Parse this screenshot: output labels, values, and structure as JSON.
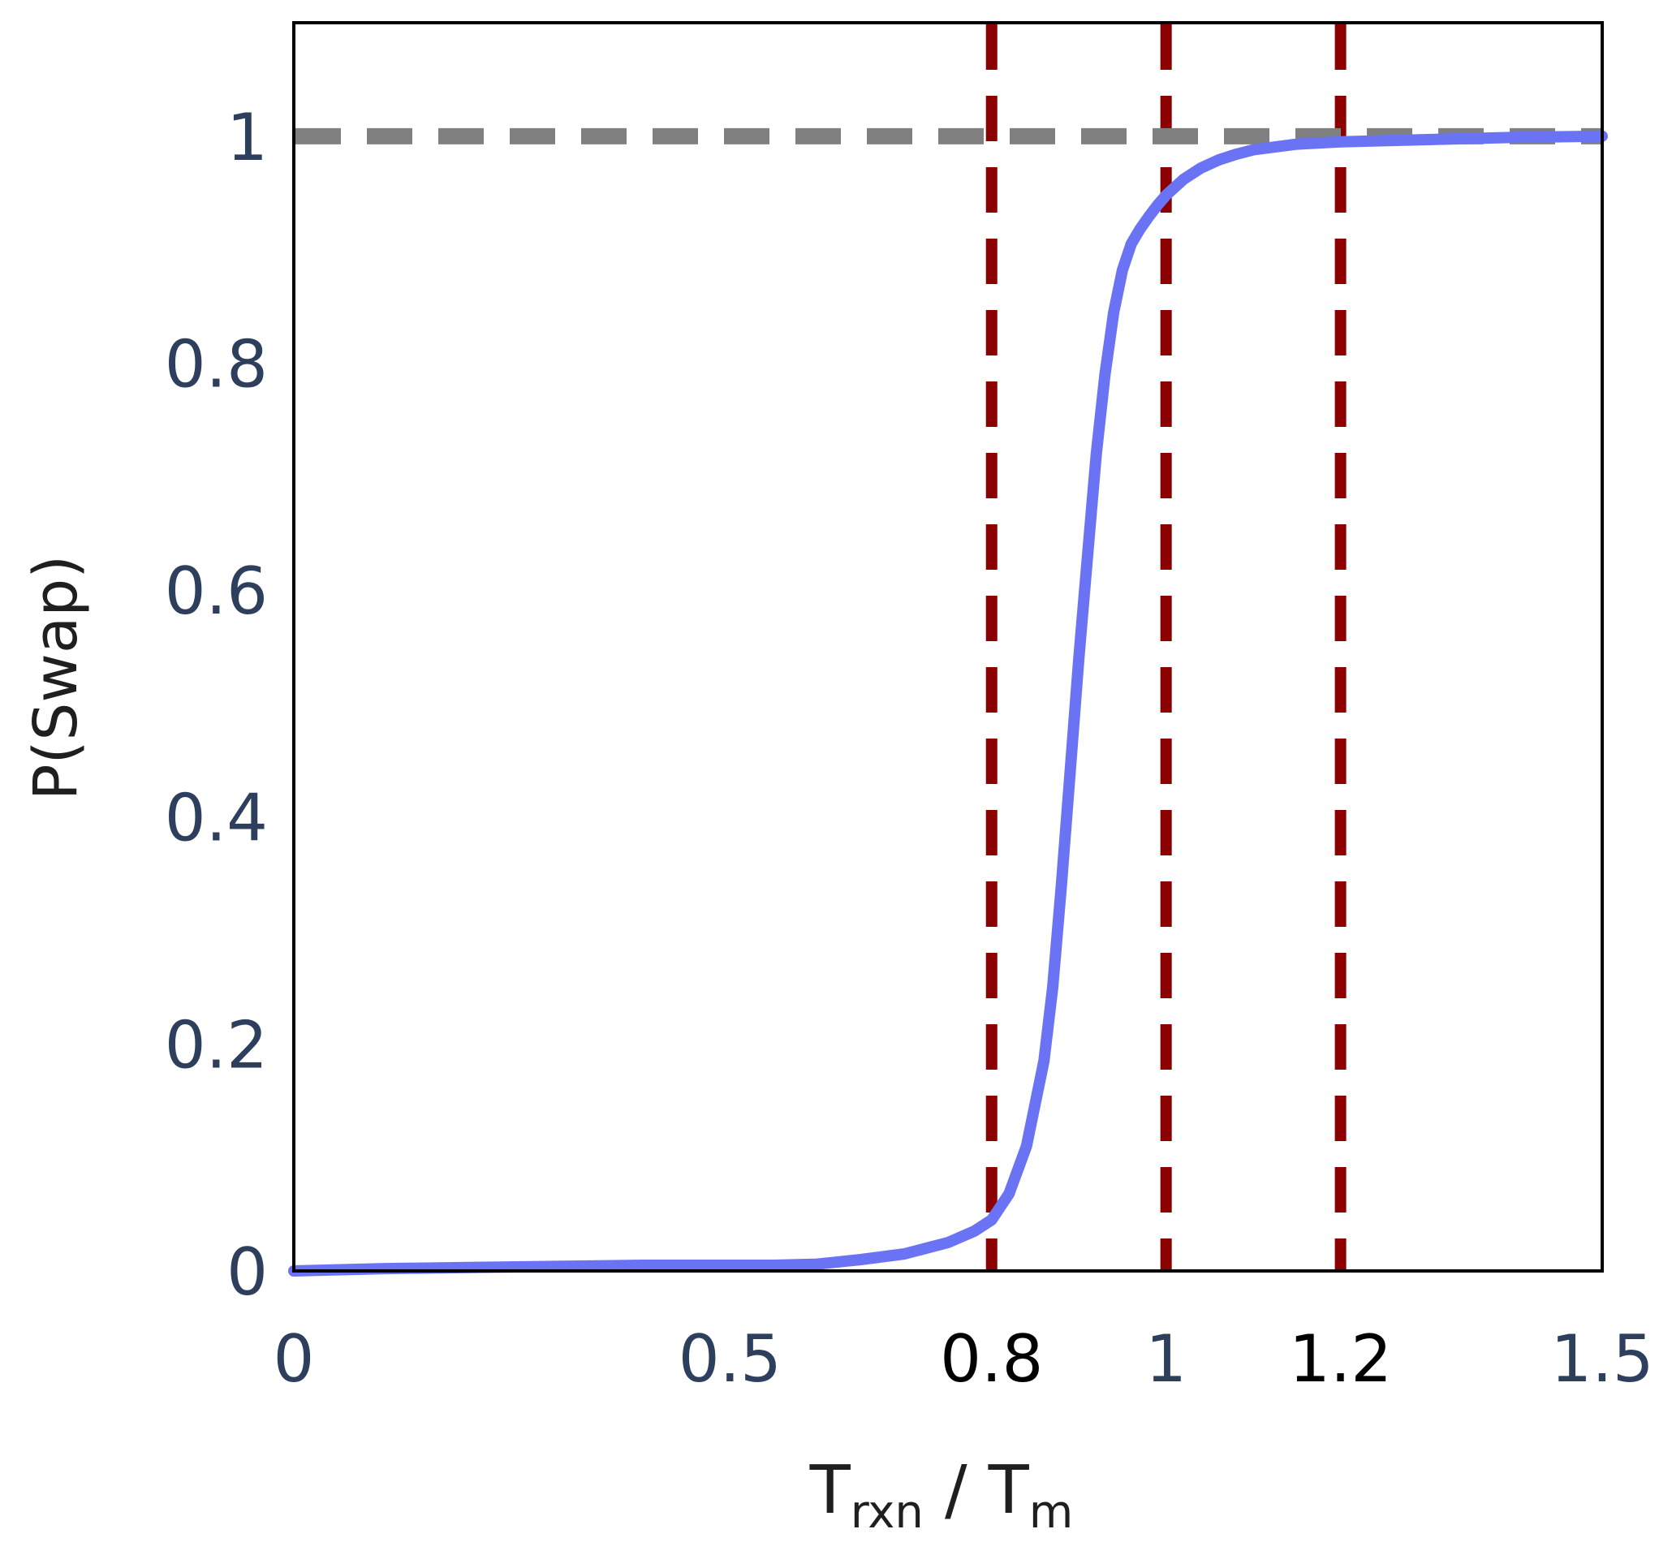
{
  "chart_data": {
    "type": "line",
    "xlabel": {
      "main": "T",
      "sub1": "rxn",
      "sep": " / ",
      "main2": "T",
      "sub2": "m"
    },
    "ylabel": "P(Swap)",
    "xlim": [
      0,
      1.5
    ],
    "ylim": [
      0,
      1.1
    ],
    "x_ticks": [
      {
        "value": 0,
        "label": "0",
        "color": "#2d3f5c"
      },
      {
        "value": 0.5,
        "label": "0.5",
        "color": "#2d3f5c"
      },
      {
        "value": 0.8,
        "label": "0.8",
        "color": "#000000"
      },
      {
        "value": 1,
        "label": "1",
        "color": "#2d3f5c"
      },
      {
        "value": 1.2,
        "label": "1.2",
        "color": "#000000"
      },
      {
        "value": 1.5,
        "label": "1.5",
        "color": "#2d3f5c"
      }
    ],
    "y_ticks": [
      {
        "value": 0,
        "label": "0"
      },
      {
        "value": 0.2,
        "label": "0.2"
      },
      {
        "value": 0.4,
        "label": "0.4"
      },
      {
        "value": 0.6,
        "label": "0.6"
      },
      {
        "value": 0.8,
        "label": "0.8"
      },
      {
        "value": 1,
        "label": "1"
      }
    ],
    "tick_color": "#2d3f5c",
    "series": [
      {
        "color": "#6b73f5",
        "x": [
          0,
          0.1,
          0.2,
          0.3,
          0.4,
          0.5,
          0.55,
          0.6,
          0.65,
          0.7,
          0.75,
          0.78,
          0.8,
          0.82,
          0.84,
          0.86,
          0.87,
          0.88,
          0.89,
          0.9,
          0.91,
          0.92,
          0.93,
          0.94,
          0.95,
          0.96,
          0.97,
          0.98,
          0.99,
          1.0,
          1.02,
          1.04,
          1.06,
          1.08,
          1.1,
          1.15,
          1.2,
          1.3,
          1.4,
          1.5
        ],
        "y": [
          0.0,
          0.002,
          0.003,
          0.004,
          0.005,
          0.005,
          0.005,
          0.006,
          0.01,
          0.015,
          0.025,
          0.035,
          0.045,
          0.068,
          0.11,
          0.185,
          0.25,
          0.34,
          0.44,
          0.54,
          0.63,
          0.72,
          0.79,
          0.845,
          0.882,
          0.905,
          0.918,
          0.929,
          0.939,
          0.948,
          0.962,
          0.972,
          0.979,
          0.984,
          0.988,
          0.993,
          0.995,
          0.997,
          0.999,
          1.0
        ]
      }
    ],
    "hlines": [
      {
        "y": 1.0,
        "color": "#808080",
        "style": "dashed"
      }
    ],
    "vlines": [
      {
        "x": 0.8,
        "color": "#8b0000",
        "style": "dashed"
      },
      {
        "x": 1.0,
        "color": "#8b0000",
        "style": "dashed"
      },
      {
        "x": 1.2,
        "color": "#8b0000",
        "style": "dashed"
      }
    ],
    "grid": false,
    "legend": "none"
  }
}
